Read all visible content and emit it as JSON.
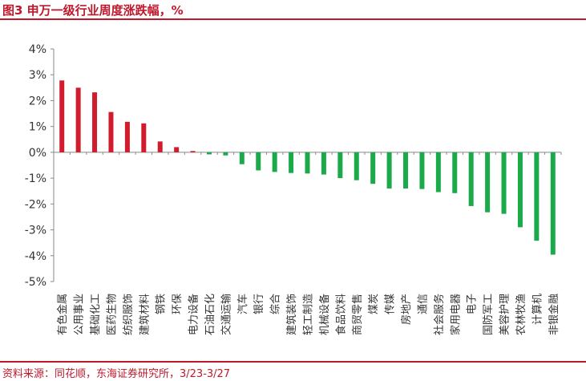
{
  "title": "图3  申万一级行业周度涨跌幅，%",
  "source": "资料来源：同花顺，东海证券研究所，3/23-3/27",
  "colors": {
    "positive": "#d01c2c",
    "negative": "#1aaa4a",
    "accent": "#c0182b",
    "axis": "#888888",
    "text": "#333333"
  },
  "chart_data": {
    "type": "bar",
    "title": "申万一级行业周度涨跌幅，%",
    "xlabel": "",
    "ylabel": "",
    "ylim": [
      -5,
      4
    ],
    "yticks": [
      4,
      3,
      2,
      1,
      0,
      -1,
      -2,
      -3,
      -4,
      -5
    ],
    "ytick_labels": [
      "4%",
      "3%",
      "2%",
      "1%",
      "0%",
      "-1%",
      "-2%",
      "-3%",
      "-4%",
      "-5%"
    ],
    "categories": [
      "有色金属",
      "公用事业",
      "基础化工",
      "医药生物",
      "纺织服饰",
      "建筑材料",
      "钢铁",
      "环保",
      "电力设备",
      "石油石化",
      "交通运输",
      "汽车",
      "银行",
      "综合",
      "建筑装饰",
      "轻工制造",
      "机械设备",
      "食品饮料",
      "商贸零售",
      "煤炭",
      "传媒",
      "房地产",
      "通信",
      "社会服务",
      "家用电器",
      "电子",
      "国防军工",
      "美容护理",
      "农林牧渔",
      "计算机",
      "非银金融"
    ],
    "values": [
      2.78,
      2.5,
      2.32,
      1.56,
      1.18,
      1.12,
      0.42,
      0.2,
      0.05,
      -0.08,
      -0.12,
      -0.46,
      -0.7,
      -0.76,
      -0.8,
      -0.82,
      -0.86,
      -1.0,
      -1.08,
      -1.22,
      -1.4,
      -1.4,
      -1.42,
      -1.54,
      -1.58,
      -2.08,
      -2.32,
      -2.38,
      -2.9,
      -3.42,
      -3.96
    ]
  }
}
